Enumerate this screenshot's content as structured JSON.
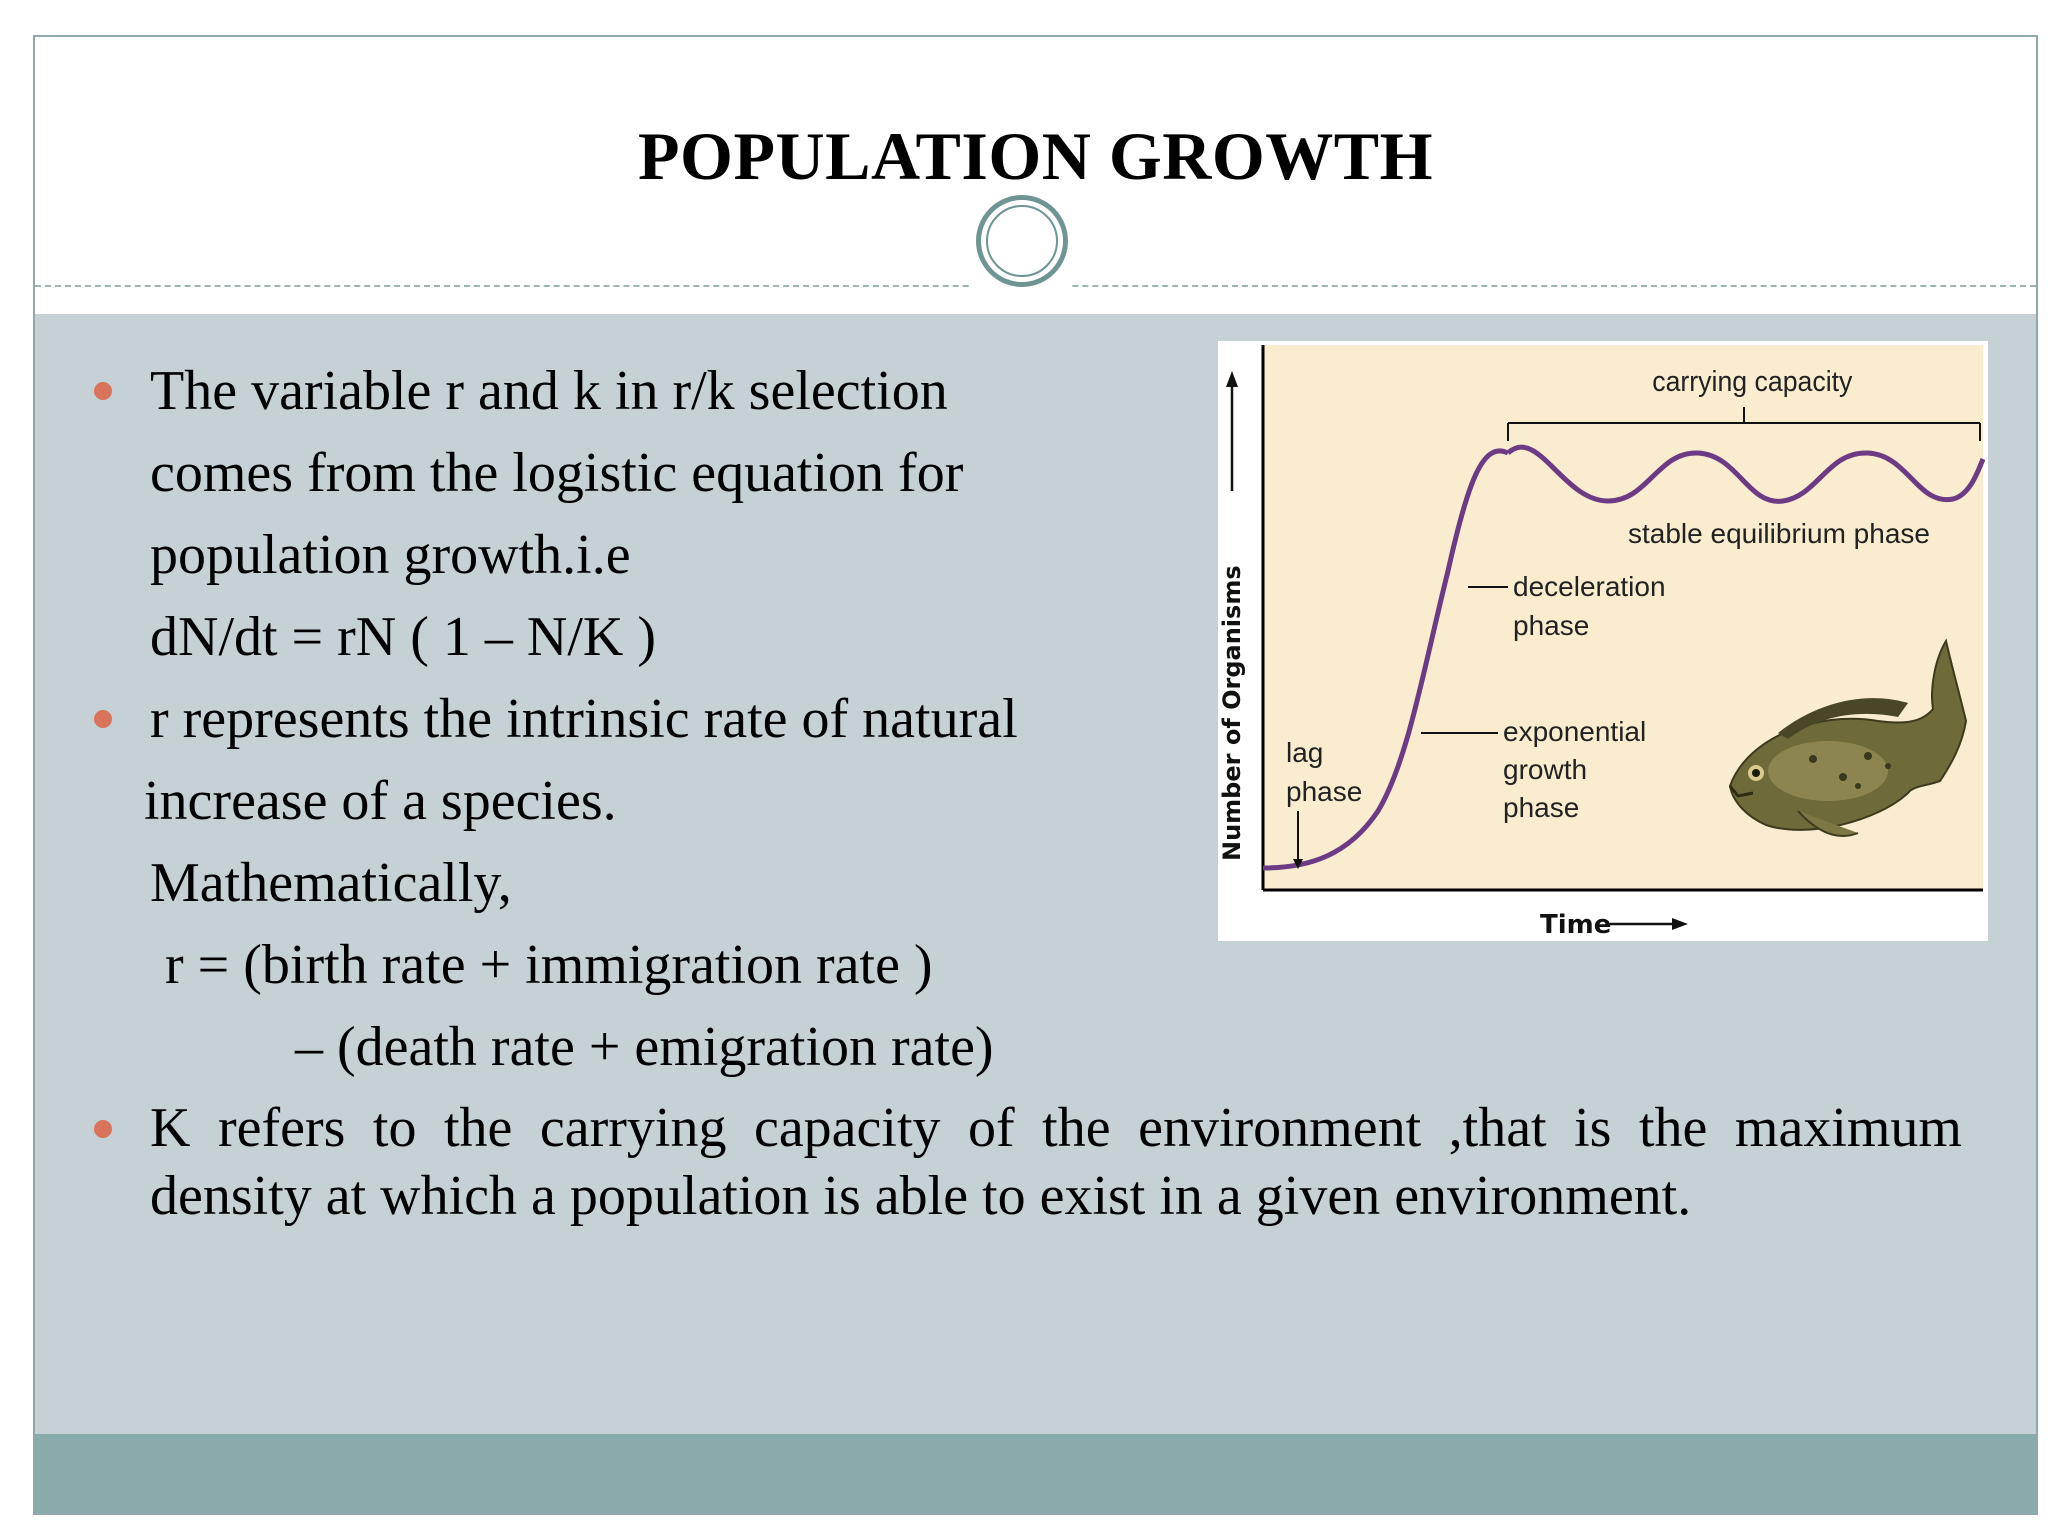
{
  "slide": {
    "title": "POPULATION GROWTH",
    "bullet1": {
      "lines": [
        "The variable r  and  k  in  r/k  selection",
        "comes from the   logistic   equation  for",
        "population growth.i.e",
        "dN/dt = rN ( 1 – N/K )"
      ]
    },
    "bullet2": {
      "lines": [
        "r represents the intrinsic rate of natural",
        "increase of  a species.",
        "Mathematically,",
        "r = (birth rate     +     immigration rate )",
        "– (death rate   +  emigration rate)"
      ]
    },
    "bullet3": {
      "text": "K  refers  to  the  carrying  capacity  of  the  environment  ,that  is  the maximum  density  at  which  a  population  is  able  to  exist  in  a  given environment."
    }
  },
  "figure": {
    "y_axis_label": "Number of Organisms",
    "x_axis_label": "Time",
    "carrying_capacity_label": "carrying capacity",
    "stable_label": "stable equilibrium phase",
    "deceleration_label": [
      "deceleration",
      "phase"
    ],
    "exponential_label": [
      "exponential",
      "growth",
      "phase"
    ],
    "lag_label": [
      "lag",
      "phase"
    ],
    "colors": {
      "background": "#faedcf",
      "curve": "#6d3a86",
      "axis": "#000000"
    },
    "illustration": "fish"
  }
}
